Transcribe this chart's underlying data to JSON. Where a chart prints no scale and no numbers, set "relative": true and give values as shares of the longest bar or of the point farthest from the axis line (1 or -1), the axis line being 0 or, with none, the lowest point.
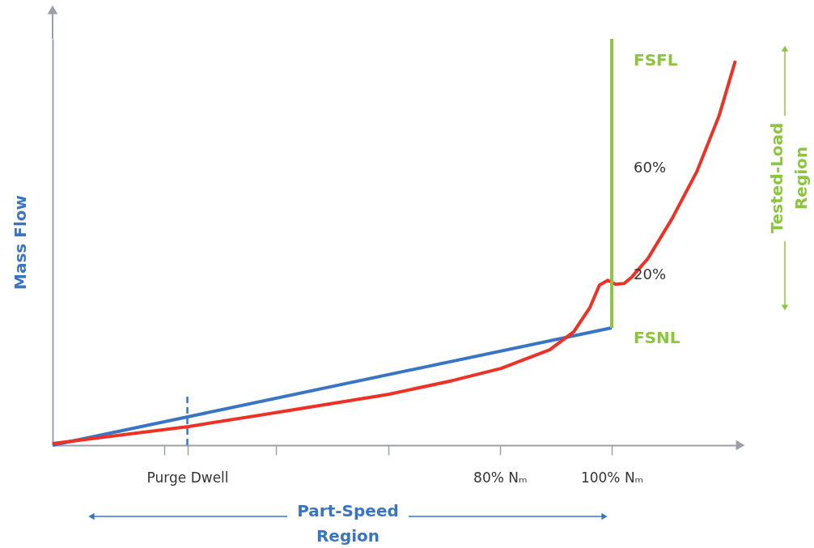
{
  "chart_data": {
    "type": "line",
    "ylabel": "Mass Flow",
    "relative": true,
    "xlim": [
      0,
      123
    ],
    "xticks": [
      {
        "value": 20,
        "label": null
      },
      {
        "value": 24.1,
        "label": "Purge Dwell"
      },
      {
        "value": 40,
        "label": null
      },
      {
        "value": 60,
        "label": null
      },
      {
        "value": 80,
        "label": "80% Nₘ"
      },
      {
        "value": 100,
        "label": "100% Nₘ"
      }
    ],
    "grid": false,
    "marker": "none",
    "line_style": "solid",
    "series": [
      {
        "color": "#3a75c4",
        "x": [
          0,
          100
        ],
        "values": [
          0,
          0.289
        ]
      },
      {
        "color": "#3a75c4",
        "x": [
          24.1,
          24.1
        ],
        "values": [
          0,
          0.12
        ],
        "line_style": "dashed"
      },
      {
        "color": "#ee3124",
        "x": [
          0,
          24.3,
          39.9,
          60,
          71.5,
          80.2,
          88.9,
          93.2,
          96.1,
          97.8,
          99.3,
          100.7,
          102.2,
          103.6,
          106.5,
          110.8,
          115.2,
          119.2,
          122.1
        ],
        "values": [
          0.004,
          0.046,
          0.08,
          0.125,
          0.159,
          0.189,
          0.235,
          0.279,
          0.339,
          0.394,
          0.406,
          0.396,
          0.398,
          0.414,
          0.46,
          0.558,
          0.673,
          0.811,
          0.946
        ]
      },
      {
        "color": "#8cc63f",
        "x": [
          100,
          100
        ],
        "values": [
          0.289,
          1
        ]
      }
    ],
    "annotations": [
      "FSFL",
      "60%",
      "20%",
      "FSNL",
      "Part-Speed Region",
      "Tested-Load Region"
    ]
  }
}
